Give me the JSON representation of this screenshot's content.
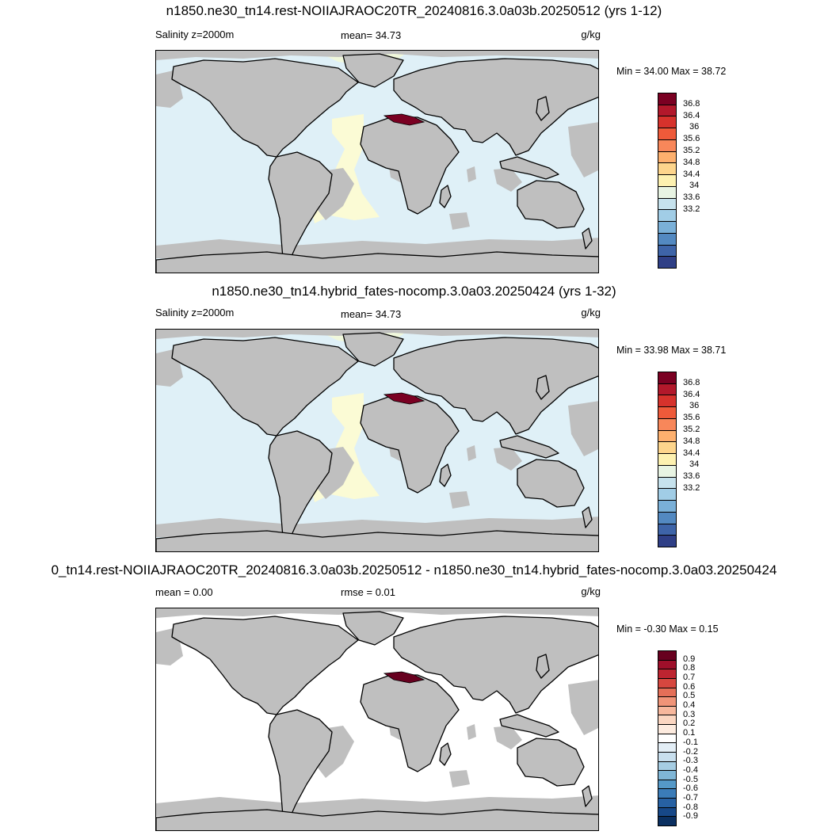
{
  "land_color": "#bfbfbf",
  "coast_color": "#000000",
  "panels": [
    {
      "title": "n1850.ne30_tn14.rest-NOIIAJRAOC20TR_20240816.3.0a03b.20250512 (yrs 1-12)",
      "left_label": "Salinity z=2000m",
      "center_label": "mean=  34.73",
      "units": "g/kg",
      "minmax": "Min =  34.00 Max =  38.72",
      "ocean_color": "#dff0f7",
      "atlantic_color": "#fbfbd5",
      "arctic_color": "#f0f8dc",
      "colorbar": {
        "colors": [
          "#7a0022",
          "#b2182b",
          "#d6322c",
          "#ee5a3a",
          "#f8875a",
          "#fdb06e",
          "#fdd58c",
          "#fdf1b0",
          "#e8f4e3",
          "#c6e2ed",
          "#a1cde6",
          "#7ab0d8",
          "#5389c1",
          "#3e64a8",
          "#2f3f86"
        ],
        "ticks": [
          "36.8",
          "36.4",
          "36",
          "35.6",
          "35.2",
          "34.8",
          "34.4",
          "34",
          "33.6",
          "33.2"
        ]
      }
    },
    {
      "title": "n1850.ne30_tn14.hybrid_fates-nocomp.3.0a03.20250424 (yrs 1-32)",
      "left_label": "Salinity z=2000m",
      "center_label": "mean=  34.73",
      "units": "g/kg",
      "minmax": "Min =  33.98 Max =  38.71",
      "ocean_color": "#dff0f7",
      "atlantic_color": "#fbfbd5",
      "arctic_color": "#f0f8dc",
      "colorbar": {
        "colors": [
          "#7a0022",
          "#b2182b",
          "#d6322c",
          "#ee5a3a",
          "#f8875a",
          "#fdb06e",
          "#fdd58c",
          "#fdf1b0",
          "#e8f4e3",
          "#c6e2ed",
          "#a1cde6",
          "#7ab0d8",
          "#5389c1",
          "#3e64a8",
          "#2f3f86"
        ],
        "ticks": [
          "36.8",
          "36.4",
          "36",
          "35.6",
          "35.2",
          "34.8",
          "34.4",
          "34",
          "33.6",
          "33.2"
        ]
      }
    },
    {
      "title": "0_tn14.rest-NOIIAJRAOC20TR_20240816.3.0a03b.20250512 - n1850.ne30_tn14.hybrid_fates-nocomp.3.0a03.20250424",
      "left_label": "mean =   0.00",
      "center_label": "rmse =   0.01",
      "units": "g/kg",
      "minmax": "Min =  -0.30 Max =   0.15",
      "ocean_color": "#ffffff",
      "atlantic_color": "#ffffff",
      "arctic_color": "#ffffff",
      "colorbar": {
        "colors": [
          "#67001f",
          "#9e0f2a",
          "#bd2430",
          "#d6473f",
          "#e46f58",
          "#f09478",
          "#f7b79c",
          "#fbd6c1",
          "#fdebdf",
          "#ffffff",
          "#e3eef6",
          "#c8dfee",
          "#a6cde3",
          "#7fb6d6",
          "#5599c8",
          "#3b7cb8",
          "#2761a3",
          "#174888",
          "#0b3061"
        ],
        "ticks": [
          "0.9",
          "0.8",
          "0.7",
          "0.6",
          "0.5",
          "0.4",
          "0.3",
          "0.2",
          "0.1",
          "-0.1",
          "-0.2",
          "-0.3",
          "-0.4",
          "-0.5",
          "-0.6",
          "-0.7",
          "-0.8",
          "-0.9"
        ]
      }
    }
  ]
}
